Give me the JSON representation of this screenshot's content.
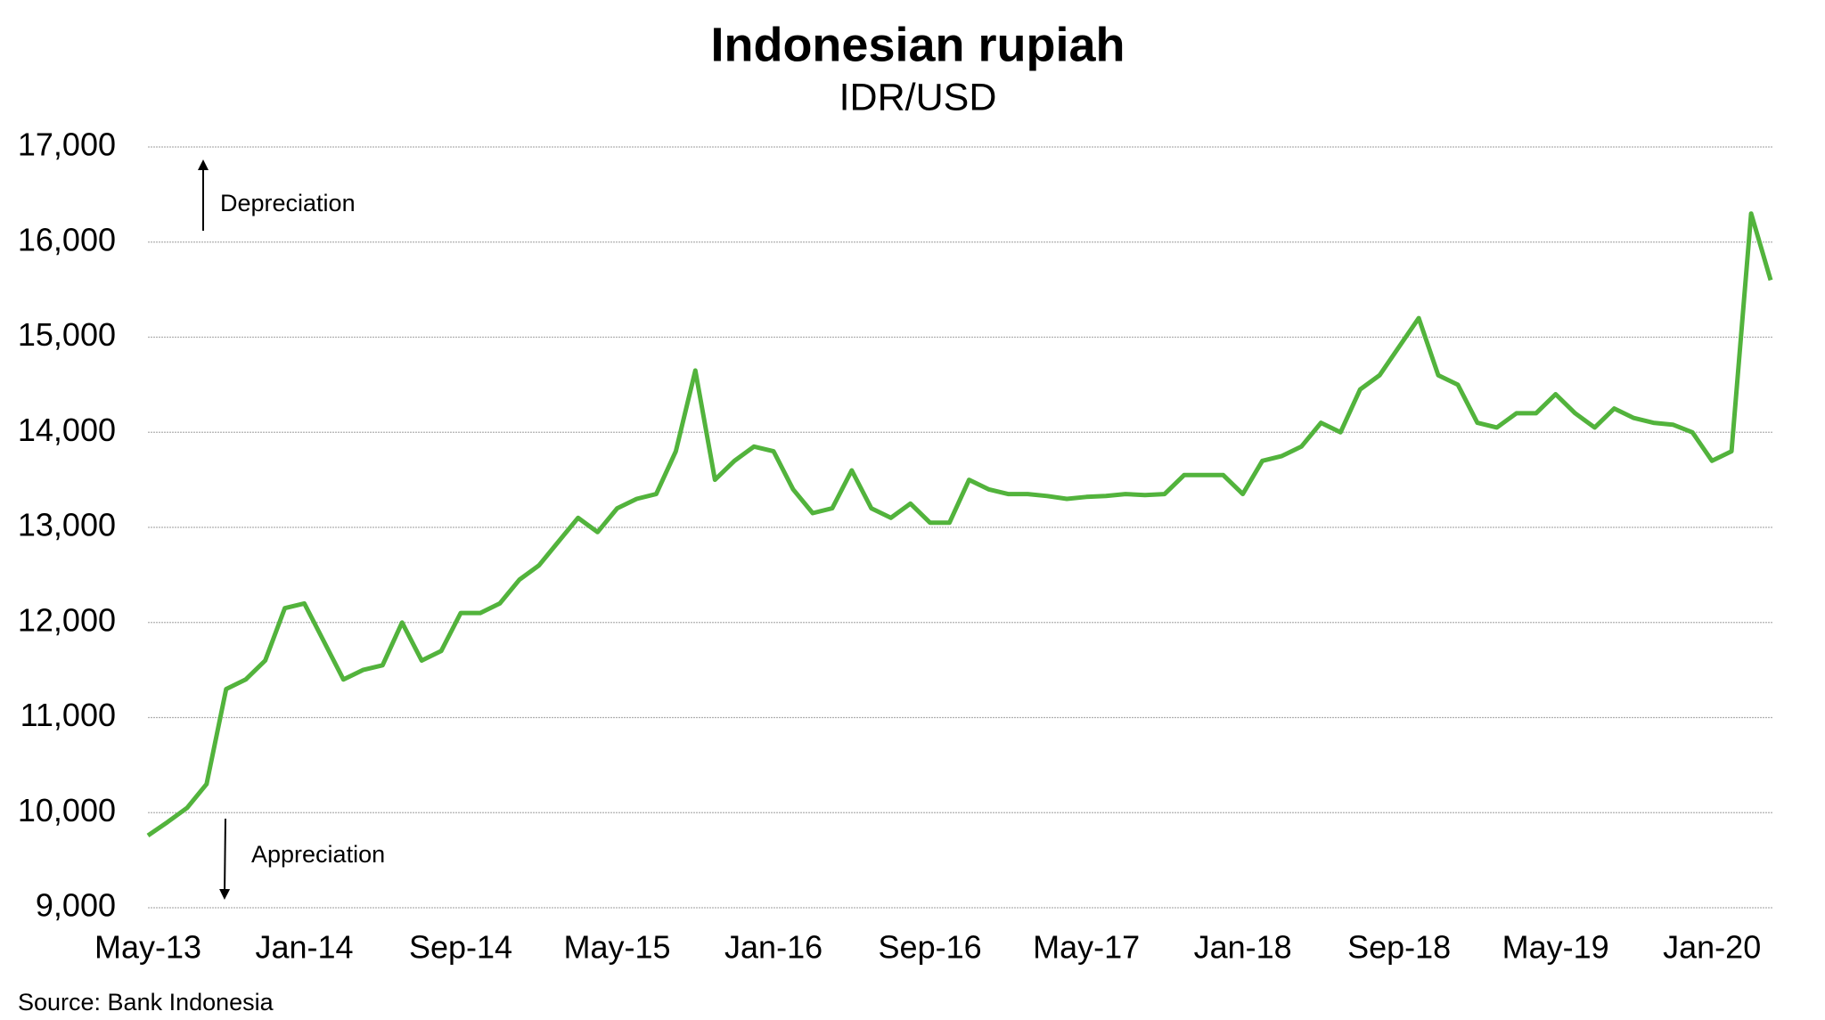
{
  "chart_data": {
    "type": "line",
    "title": "Indonesian rupiah",
    "subtitle": "IDR/USD",
    "annotations": [
      "Depreciation",
      "Appreciation"
    ],
    "source": "Source: Bank Indonesia",
    "x": [
      "2013-05",
      "2013-06",
      "2013-07",
      "2013-08",
      "2013-09",
      "2013-10",
      "2013-11",
      "2013-12",
      "2014-01",
      "2014-02",
      "2014-03",
      "2014-04",
      "2014-05",
      "2014-06",
      "2014-07",
      "2014-08",
      "2014-09",
      "2014-10",
      "2014-11",
      "2014-12",
      "2015-01",
      "2015-02",
      "2015-03",
      "2015-04",
      "2015-05",
      "2015-06",
      "2015-07",
      "2015-08",
      "2015-09",
      "2015-10",
      "2015-11",
      "2015-12",
      "2016-01",
      "2016-02",
      "2016-03",
      "2016-04",
      "2016-05",
      "2016-06",
      "2016-07",
      "2016-08",
      "2016-09",
      "2016-10",
      "2016-11",
      "2016-12",
      "2017-01",
      "2017-02",
      "2017-03",
      "2017-04",
      "2017-05",
      "2017-06",
      "2017-07",
      "2017-08",
      "2017-09",
      "2017-10",
      "2017-11",
      "2017-12",
      "2018-01",
      "2018-02",
      "2018-03",
      "2018-04",
      "2018-05",
      "2018-06",
      "2018-07",
      "2018-08",
      "2018-09",
      "2018-10",
      "2018-11",
      "2018-12",
      "2019-01",
      "2019-02",
      "2019-03",
      "2019-04",
      "2019-05",
      "2019-06",
      "2019-07",
      "2019-08",
      "2019-09",
      "2019-10",
      "2019-11",
      "2019-12",
      "2020-01",
      "2020-02",
      "2020-03",
      "2020-04"
    ],
    "series": [
      {
        "name": "IDR/USD",
        "color": "#52b33c",
        "values": [
          9760,
          9900,
          10050,
          10300,
          11300,
          11400,
          11600,
          12150,
          12200,
          11800,
          11400,
          11500,
          11550,
          12000,
          11600,
          11700,
          12100,
          12100,
          12200,
          12450,
          12600,
          12850,
          13100,
          12950,
          13200,
          13300,
          13350,
          13800,
          14650,
          13500,
          13700,
          13850,
          13800,
          13400,
          13150,
          13200,
          13600,
          13200,
          13100,
          13250,
          13050,
          13050,
          13500,
          13400,
          13350,
          13350,
          13330,
          13300,
          13320,
          13330,
          13350,
          13340,
          13350,
          13550,
          13550,
          13550,
          13350,
          13700,
          13750,
          13850,
          14100,
          14000,
          14450,
          14600,
          14900,
          15200,
          14600,
          14500,
          14100,
          14050,
          14200,
          14200,
          14400,
          14200,
          14050,
          14250,
          14150,
          14100,
          14080,
          14000,
          13700,
          13800,
          16300,
          15600
        ]
      }
    ],
    "xticks": [
      {
        "value": "2013-05",
        "label": "May-13"
      },
      {
        "value": "2014-01",
        "label": "Jan-14"
      },
      {
        "value": "2014-09",
        "label": "Sep-14"
      },
      {
        "value": "2015-05",
        "label": "May-15"
      },
      {
        "value": "2016-01",
        "label": "Jan-16"
      },
      {
        "value": "2016-09",
        "label": "Sep-16"
      },
      {
        "value": "2017-05",
        "label": "May-17"
      },
      {
        "value": "2018-01",
        "label": "Jan-18"
      },
      {
        "value": "2018-09",
        "label": "Sep-18"
      },
      {
        "value": "2019-05",
        "label": "May-19"
      },
      {
        "value": "2020-01",
        "label": "Jan-20"
      }
    ],
    "ylim": [
      9000,
      17000
    ],
    "yticks": [
      {
        "value": 9000,
        "label": "9,000"
      },
      {
        "value": 10000,
        "label": "10,000"
      },
      {
        "value": 11000,
        "label": "11,000"
      },
      {
        "value": 12000,
        "label": "12,000"
      },
      {
        "value": 13000,
        "label": "13,000"
      },
      {
        "value": 14000,
        "label": "14,000"
      },
      {
        "value": 15000,
        "label": "15,000"
      },
      {
        "value": 16000,
        "label": "16,000"
      },
      {
        "value": 17000,
        "label": "17,000"
      }
    ],
    "grid": true
  }
}
